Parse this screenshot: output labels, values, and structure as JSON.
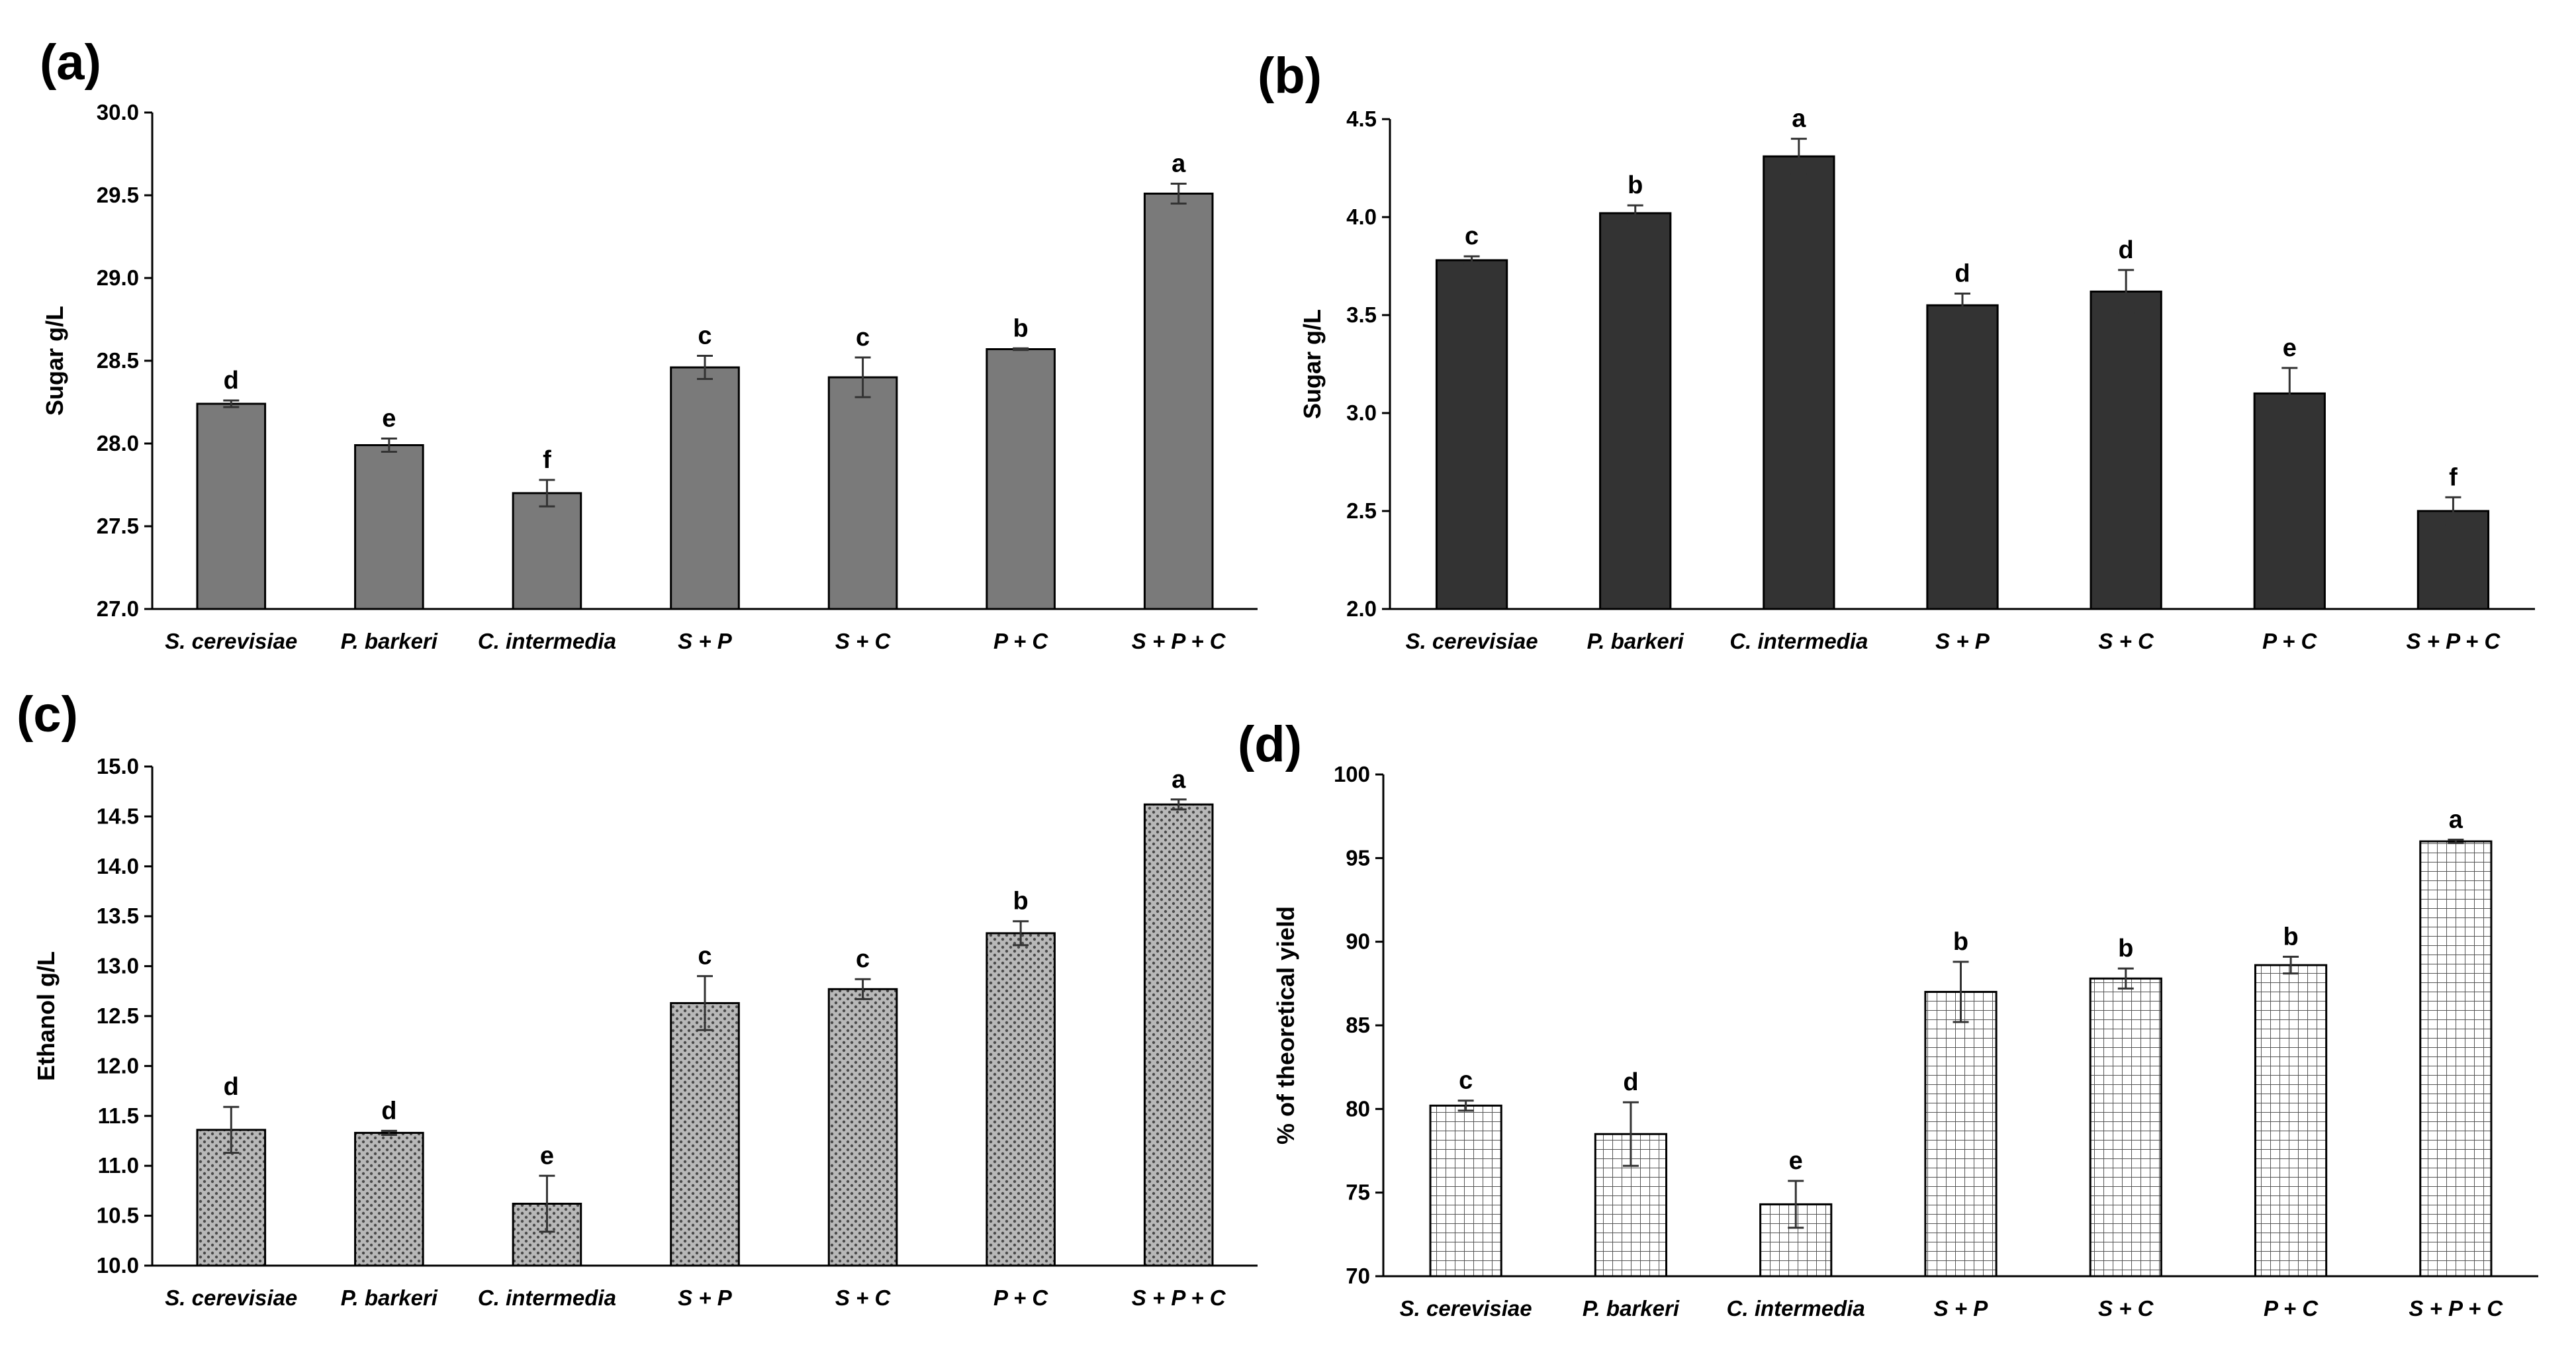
{
  "chart_data": [
    {
      "id": "a",
      "panel_label": "(a)",
      "type": "bar",
      "ylabel": "Sugar g/L",
      "ylim": [
        27.0,
        30.0
      ],
      "yticks": [
        "27.0",
        "27.5",
        "28.0",
        "28.5",
        "29.0",
        "29.5",
        "30.0"
      ],
      "ytick_values": [
        27.0,
        27.5,
        28.0,
        28.5,
        29.0,
        29.5,
        30.0
      ],
      "categories": [
        "S. cerevisiae",
        "P. barkeri",
        "C. intermedia",
        "S + P",
        "S + C",
        "P + C",
        "S + P + C"
      ],
      "values": [
        28.24,
        27.99,
        27.7,
        28.46,
        28.4,
        28.57,
        29.51
      ],
      "errors": [
        0.02,
        0.04,
        0.08,
        0.07,
        0.12,
        0.005,
        0.06
      ],
      "letters": [
        "d",
        "e",
        "f",
        "c",
        "c",
        "b",
        "a"
      ],
      "bar_color": "#7a7a7a",
      "pattern": "solid"
    },
    {
      "id": "b",
      "panel_label": "(b)",
      "type": "bar",
      "ylabel": "Sugar g/L",
      "ylim": [
        2.0,
        4.5
      ],
      "yticks": [
        "2.0",
        "2.5",
        "3.0",
        "3.5",
        "4.0",
        "4.5"
      ],
      "ytick_values": [
        2.0,
        2.5,
        3.0,
        3.5,
        4.0,
        4.5
      ],
      "categories": [
        "S. cerevisiae",
        "P. barkeri",
        "C. intermedia",
        "S + P",
        "S + C",
        "P + C",
        "S + P + C"
      ],
      "values": [
        3.78,
        4.02,
        4.31,
        3.55,
        3.62,
        3.1,
        2.5
      ],
      "errors": [
        0.02,
        0.04,
        0.09,
        0.06,
        0.11,
        0.13,
        0.07
      ],
      "letters": [
        "c",
        "b",
        "a",
        "d",
        "d",
        "e",
        "f"
      ],
      "bar_color": "#333333",
      "pattern": "solid"
    },
    {
      "id": "c",
      "panel_label": "(c)",
      "type": "bar",
      "ylabel": "Ethanol g/L",
      "ylim": [
        10.0,
        15.0
      ],
      "yticks": [
        "10.0",
        "10.5",
        "11.0",
        "11.5",
        "12.0",
        "12.5",
        "13.0",
        "13.5",
        "14.0",
        "14.5",
        "15.0"
      ],
      "ytick_values": [
        10.0,
        10.5,
        11.0,
        11.5,
        12.0,
        12.5,
        13.0,
        13.5,
        14.0,
        14.5,
        15.0
      ],
      "categories": [
        "S. cerevisiae",
        "P. barkeri",
        "C. intermedia",
        "S + P",
        "S + C",
        "P + C",
        "S + P + C"
      ],
      "values": [
        11.36,
        11.33,
        10.62,
        12.63,
        12.77,
        13.33,
        14.62
      ],
      "errors": [
        0.23,
        0.02,
        0.28,
        0.27,
        0.1,
        0.12,
        0.05
      ],
      "letters": [
        "d",
        "d",
        "e",
        "c",
        "c",
        "b",
        "a"
      ],
      "bar_color": "#9a9a9a",
      "pattern": "dots"
    },
    {
      "id": "d",
      "panel_label": "(d)",
      "type": "bar",
      "ylabel": "% of theoretical yield",
      "ylim": [
        70,
        100
      ],
      "yticks": [
        "70",
        "75",
        "80",
        "85",
        "90",
        "95",
        "100"
      ],
      "ytick_values": [
        70,
        75,
        80,
        85,
        90,
        95,
        100
      ],
      "categories": [
        "S. cerevisiae",
        "P. barkeri",
        "C. intermedia",
        "S + P",
        "S + C",
        "P + C",
        "S + P + C"
      ],
      "values": [
        80.2,
        78.5,
        74.3,
        87.0,
        87.8,
        88.6,
        96.0
      ],
      "errors": [
        0.3,
        1.9,
        1.4,
        1.8,
        0.6,
        0.5,
        0.1
      ],
      "letters": [
        "c",
        "d",
        "e",
        "b",
        "b",
        "b",
        "a"
      ],
      "bar_color": "#ffffff",
      "pattern": "grid"
    }
  ]
}
